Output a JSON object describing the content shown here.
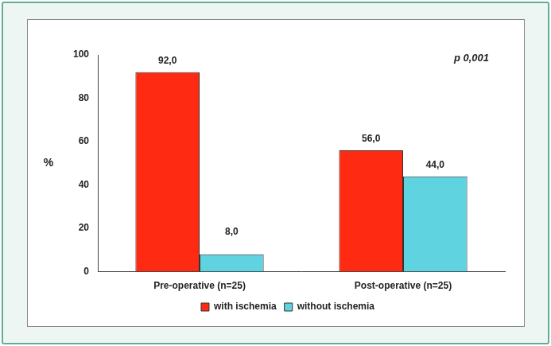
{
  "chart_data": {
    "type": "bar",
    "categories": [
      "Pre-operative (n=25)",
      "Post-operative (n=25)"
    ],
    "series": [
      {
        "name": "with ischemia",
        "color": "#ff2a12",
        "values": [
          92,
          56
        ],
        "value_labels": [
          "92,0",
          "56,0"
        ]
      },
      {
        "name": "without ischemia",
        "color": "#5fd3e0",
        "values": [
          8,
          44
        ],
        "value_labels": [
          "8,0",
          "44,0"
        ]
      }
    ],
    "y_label": "%",
    "annotations": [
      "p 0,001"
    ],
    "ylim": [
      0,
      100
    ],
    "yticks": [
      0,
      20,
      40,
      60,
      80,
      100
    ],
    "grid": false,
    "legend": "bottom",
    "data_labels": true
  }
}
